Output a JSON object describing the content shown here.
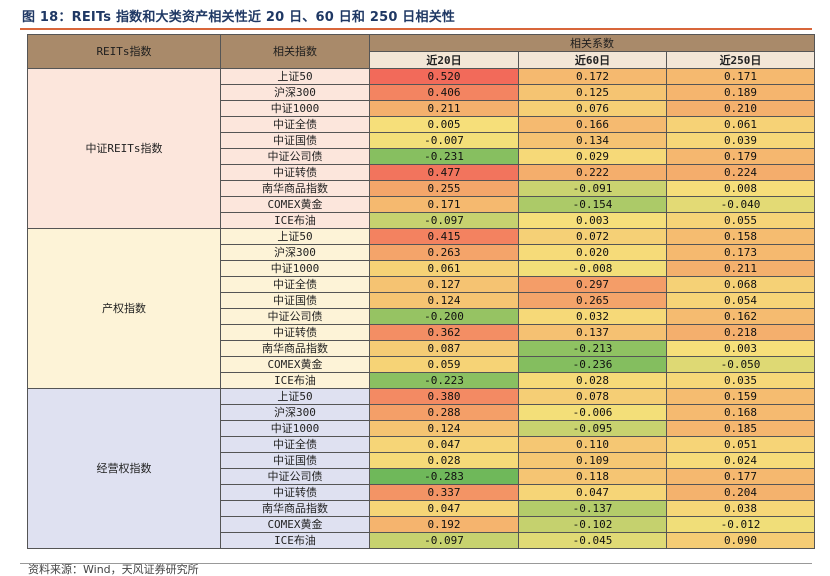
{
  "title": "图 18：REITs 指数和大类资产相关性近 20 日、60 日和 250 日相关性",
  "headers": {
    "index": "REITs指数",
    "asset": "相关指数",
    "corr": "相关系数",
    "periods": [
      "近20日",
      "近60日",
      "近250日"
    ]
  },
  "groups": [
    {
      "name": "中证REITs指数",
      "rows": [
        {
          "asset": "上证50",
          "v": [
            "0.520",
            "0.172",
            "0.171"
          ]
        },
        {
          "asset": "沪深300",
          "v": [
            "0.406",
            "0.125",
            "0.189"
          ]
        },
        {
          "asset": "中证1000",
          "v": [
            "0.211",
            "0.076",
            "0.210"
          ]
        },
        {
          "asset": "中证全债",
          "v": [
            "0.005",
            "0.166",
            "0.061"
          ]
        },
        {
          "asset": "中证国债",
          "v": [
            "-0.007",
            "0.134",
            "0.039"
          ]
        },
        {
          "asset": "中证公司债",
          "v": [
            "-0.231",
            "0.029",
            "0.179"
          ]
        },
        {
          "asset": "中证转债",
          "v": [
            "0.477",
            "0.222",
            "0.224"
          ]
        },
        {
          "asset": "南华商品指数",
          "v": [
            "0.255",
            "-0.091",
            "0.008"
          ]
        },
        {
          "asset": "COMEX黄金",
          "v": [
            "0.171",
            "-0.154",
            "-0.040"
          ]
        },
        {
          "asset": "ICE布油",
          "v": [
            "-0.097",
            "0.003",
            "0.055"
          ]
        }
      ]
    },
    {
      "name": "产权指数",
      "rows": [
        {
          "asset": "上证50",
          "v": [
            "0.415",
            "0.072",
            "0.158"
          ]
        },
        {
          "asset": "沪深300",
          "v": [
            "0.263",
            "0.020",
            "0.173"
          ]
        },
        {
          "asset": "中证1000",
          "v": [
            "0.061",
            "-0.008",
            "0.211"
          ]
        },
        {
          "asset": "中证全债",
          "v": [
            "0.127",
            "0.297",
            "0.068"
          ]
        },
        {
          "asset": "中证国债",
          "v": [
            "0.124",
            "0.265",
            "0.054"
          ]
        },
        {
          "asset": "中证公司债",
          "v": [
            "-0.200",
            "0.032",
            "0.162"
          ]
        },
        {
          "asset": "中证转债",
          "v": [
            "0.362",
            "0.137",
            "0.218"
          ]
        },
        {
          "asset": "南华商品指数",
          "v": [
            "0.087",
            "-0.213",
            "0.003"
          ]
        },
        {
          "asset": "COMEX黄金",
          "v": [
            "0.059",
            "-0.236",
            "-0.050"
          ]
        },
        {
          "asset": "ICE布油",
          "v": [
            "-0.223",
            "0.028",
            "0.035"
          ]
        }
      ]
    },
    {
      "name": "经营权指数",
      "rows": [
        {
          "asset": "上证50",
          "v": [
            "0.380",
            "0.078",
            "0.159"
          ]
        },
        {
          "asset": "沪深300",
          "v": [
            "0.288",
            "-0.006",
            "0.168"
          ]
        },
        {
          "asset": "中证1000",
          "v": [
            "0.124",
            "-0.095",
            "0.185"
          ]
        },
        {
          "asset": "中证全债",
          "v": [
            "0.047",
            "0.110",
            "0.051"
          ]
        },
        {
          "asset": "中证国债",
          "v": [
            "0.028",
            "0.109",
            "0.024"
          ]
        },
        {
          "asset": "中证公司债",
          "v": [
            "-0.283",
            "0.118",
            "0.177"
          ]
        },
        {
          "asset": "中证转债",
          "v": [
            "0.337",
            "0.047",
            "0.204"
          ]
        },
        {
          "asset": "南华商品指数",
          "v": [
            "0.047",
            "-0.137",
            "0.038"
          ]
        },
        {
          "asset": "COMEX黄金",
          "v": [
            "0.192",
            "-0.102",
            "-0.012"
          ]
        },
        {
          "asset": "ICE布油",
          "v": [
            "-0.097",
            "-0.045",
            "0.090"
          ]
        }
      ]
    }
  ],
  "colors": {
    "neg": "#6fb85a",
    "mid": "#f6e07a",
    "pos": "#f26a5a",
    "group_bg": [
      "#fce6dc",
      "#fdf3d7",
      "#dfe1f1"
    ]
  },
  "source": "资料来源：Wind，天风证券研究所"
}
